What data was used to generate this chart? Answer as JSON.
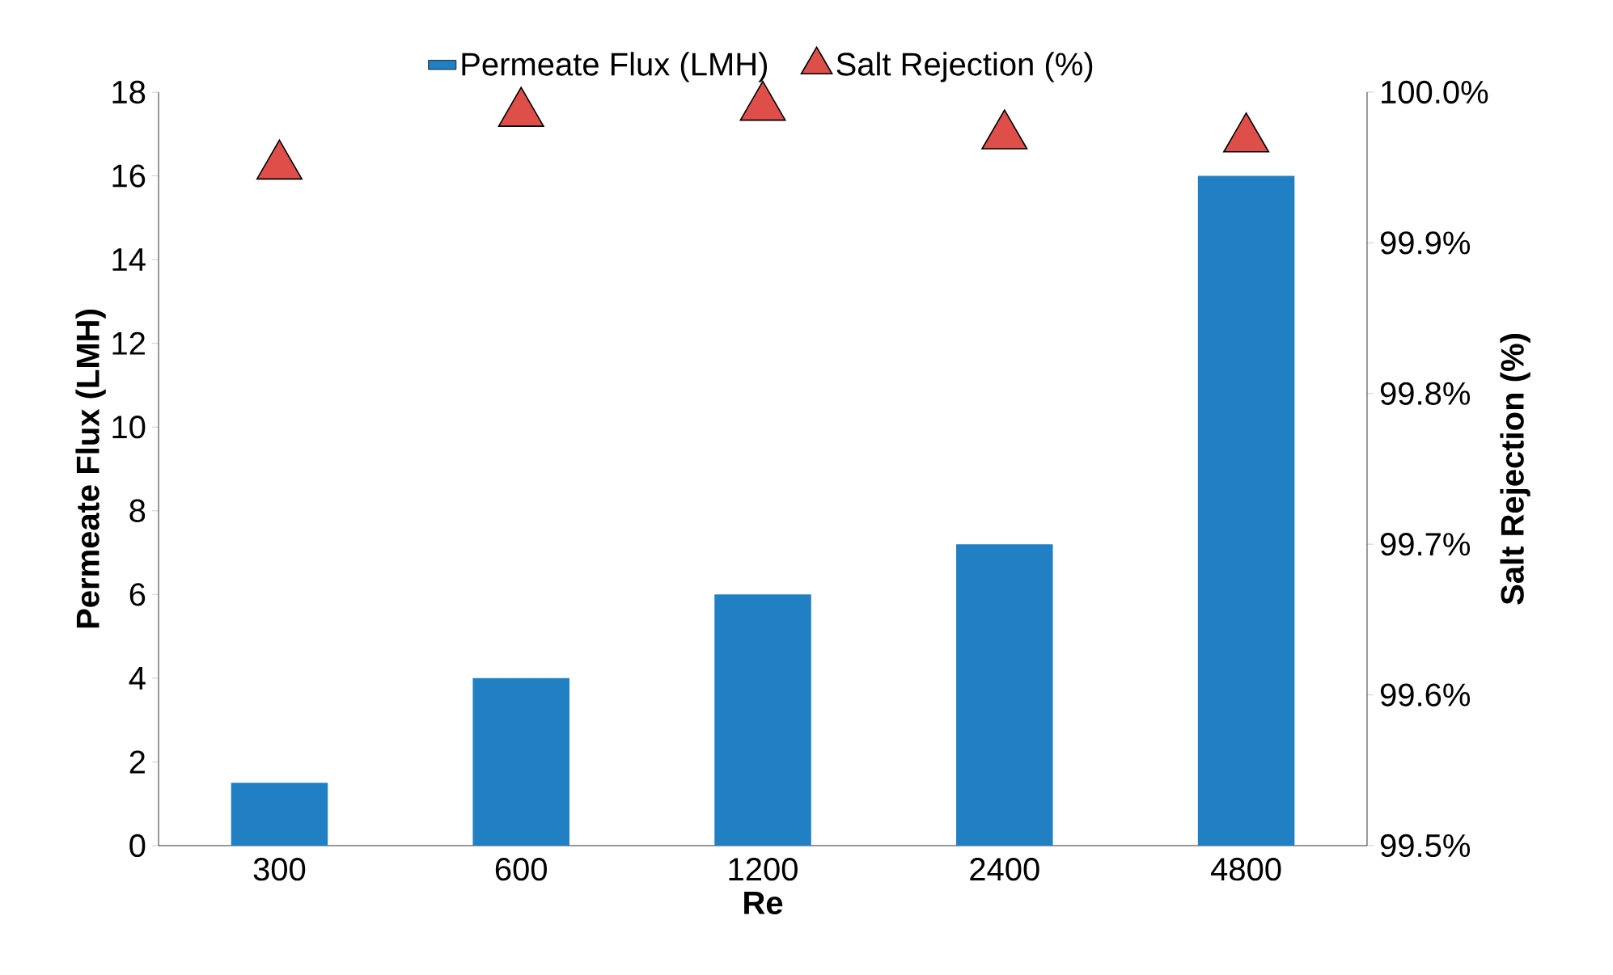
{
  "chart_data": {
    "type": "bar",
    "categories": [
      "300",
      "600",
      "1200",
      "2400",
      "4800"
    ],
    "xlabel": "Re",
    "ylabel": "Permeate Flux (LMH)",
    "y2label": "Salt Rejection (%)",
    "ylim": [
      0,
      18
    ],
    "yticks": [
      0,
      2,
      4,
      6,
      8,
      10,
      12,
      14,
      16,
      18
    ],
    "y2lim": [
      99.5,
      100.0
    ],
    "y2ticks": [
      {
        "value": 99.5,
        "label": "99.5%"
      },
      {
        "value": 99.6,
        "label": "99.6%"
      },
      {
        "value": 99.7,
        "label": "99.7%"
      },
      {
        "value": 99.8,
        "label": "99.8%"
      },
      {
        "value": 99.9,
        "label": "99.9%"
      },
      {
        "value": 100.0,
        "label": "100.0%"
      }
    ],
    "legend": "top",
    "series": [
      {
        "name": "Permeate Flux (LMH)",
        "color": "#2180c4",
        "values": [
          1.5,
          4,
          6,
          7.2,
          16
        ]
      },
      {
        "name": "Salt Rejection (%)",
        "type": "scatter",
        "axis": "y2",
        "marker": "triangle",
        "color": "#df4f4a",
        "values": [
          99.951,
          99.986,
          99.99,
          99.971,
          99.969
        ]
      }
    ]
  }
}
